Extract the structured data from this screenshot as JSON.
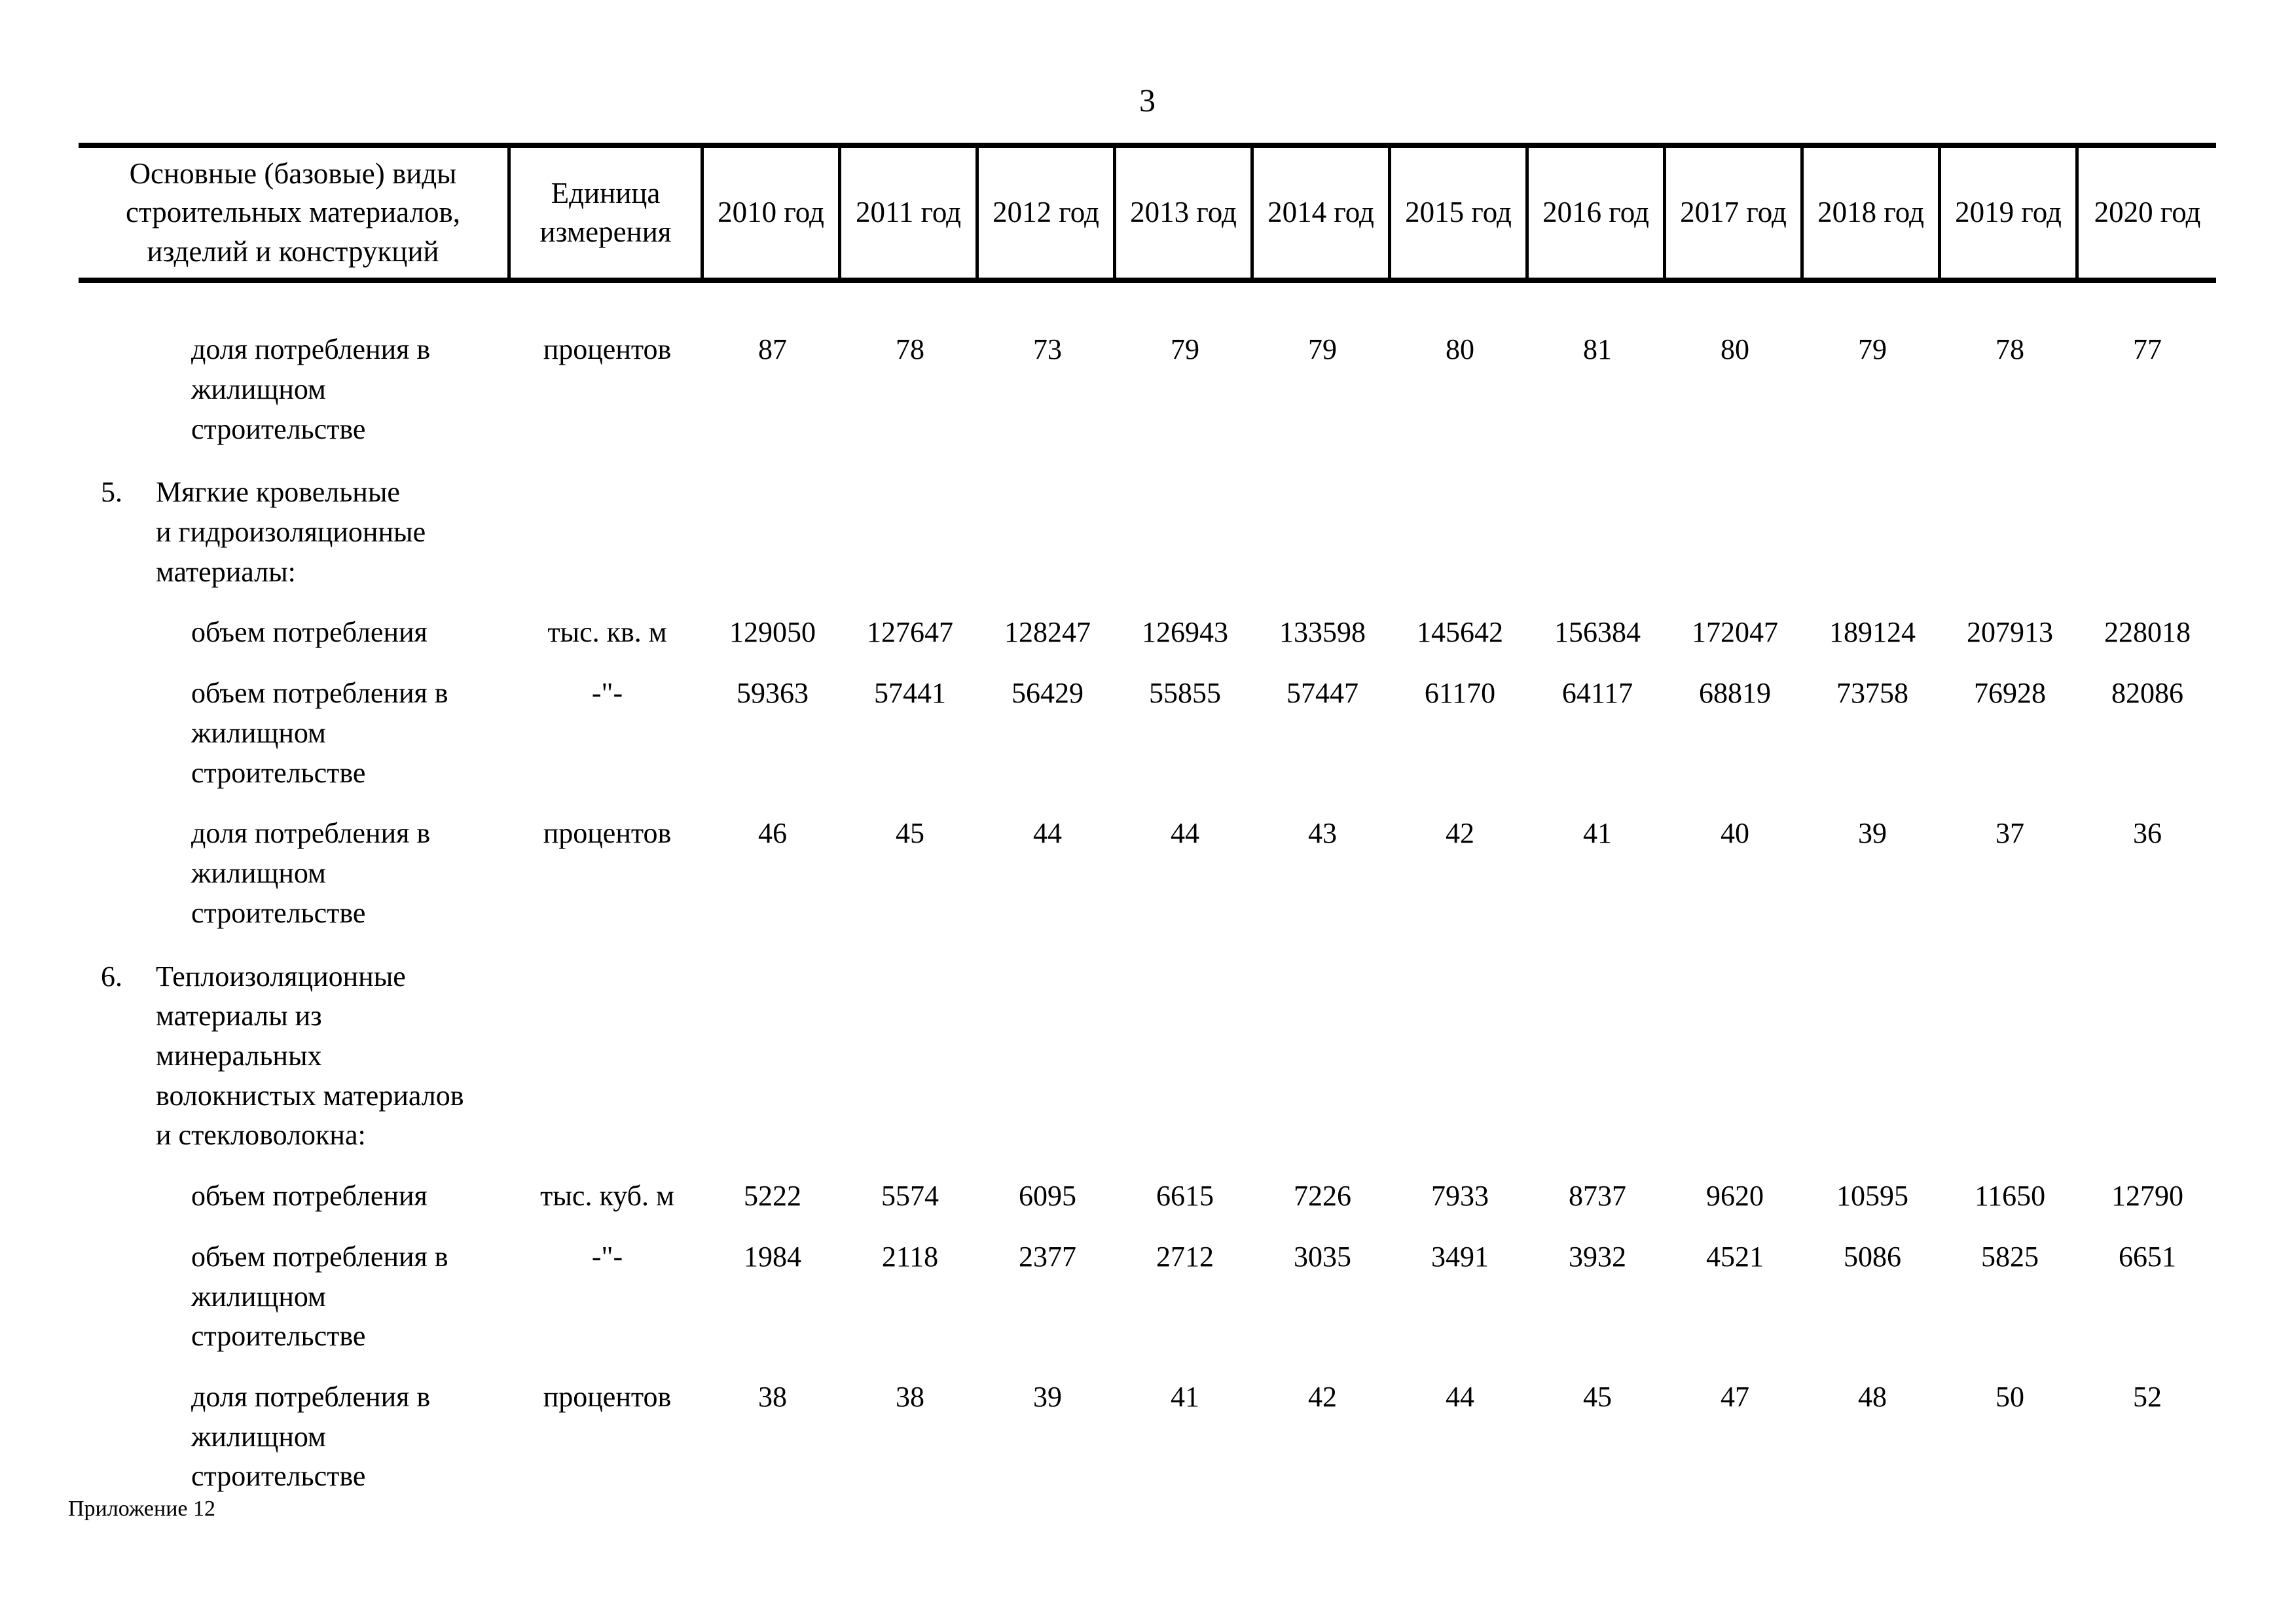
{
  "page": {
    "number": "3",
    "footer": "Приложение 12"
  },
  "table": {
    "name_header": "Основные (базовые) виды\nстроительных материалов,\nизделий и конструкций",
    "unit_header": "Единица\nизмерения",
    "year_headers": [
      "2010 год",
      "2011 год",
      "2012 год",
      "2013 год",
      "2014 год",
      "2015 год",
      "2016 год",
      "2017 год",
      "2018 год",
      "2019 год",
      "2020 год"
    ],
    "rows": [
      {
        "type": "data",
        "label": "доля потребления в\nжилищном\nстроительстве",
        "unit": "процентов",
        "values": [
          "87",
          "78",
          "73",
          "79",
          "79",
          "80",
          "81",
          "80",
          "79",
          "78",
          "77"
        ]
      },
      {
        "type": "section",
        "number": "5.",
        "label": "Мягкие кровельные\nи гидроизоляционные\nматериалы:"
      },
      {
        "type": "data",
        "label": "объем потребления",
        "unit": "тыс. кв. м",
        "values": [
          "129050",
          "127647",
          "128247",
          "126943",
          "133598",
          "145642",
          "156384",
          "172047",
          "189124",
          "207913",
          "228018"
        ]
      },
      {
        "type": "data",
        "label": "объем потребления в\nжилищном\nстроительстве",
        "unit": "-\"-",
        "values": [
          "59363",
          "57441",
          "56429",
          "55855",
          "57447",
          "61170",
          "64117",
          "68819",
          "73758",
          "76928",
          "82086"
        ]
      },
      {
        "type": "data",
        "label": "доля потребления в\nжилищном\nстроительстве",
        "unit": "процентов",
        "values": [
          "46",
          "45",
          "44",
          "44",
          "43",
          "42",
          "41",
          "40",
          "39",
          "37",
          "36"
        ]
      },
      {
        "type": "section",
        "number": "6.",
        "label": "Теплоизоляционные\nматериалы из\nминеральных\nволокнистых материалов\nи стекловолокна:"
      },
      {
        "type": "data",
        "label": "объем потребления",
        "unit": "тыс. куб. м",
        "values": [
          "5222",
          "5574",
          "6095",
          "6615",
          "7226",
          "7933",
          "8737",
          "9620",
          "10595",
          "11650",
          "12790"
        ]
      },
      {
        "type": "data",
        "label": "объем потребления в\nжилищном\nстроительстве",
        "unit": "-\"-",
        "values": [
          "1984",
          "2118",
          "2377",
          "2712",
          "3035",
          "3491",
          "3932",
          "4521",
          "5086",
          "5825",
          "6651"
        ]
      },
      {
        "type": "data",
        "label": "доля потребления в\nжилищном\nстроительстве",
        "unit": "процентов",
        "values": [
          "38",
          "38",
          "39",
          "41",
          "42",
          "44",
          "45",
          "47",
          "48",
          "50",
          "52"
        ]
      }
    ]
  }
}
